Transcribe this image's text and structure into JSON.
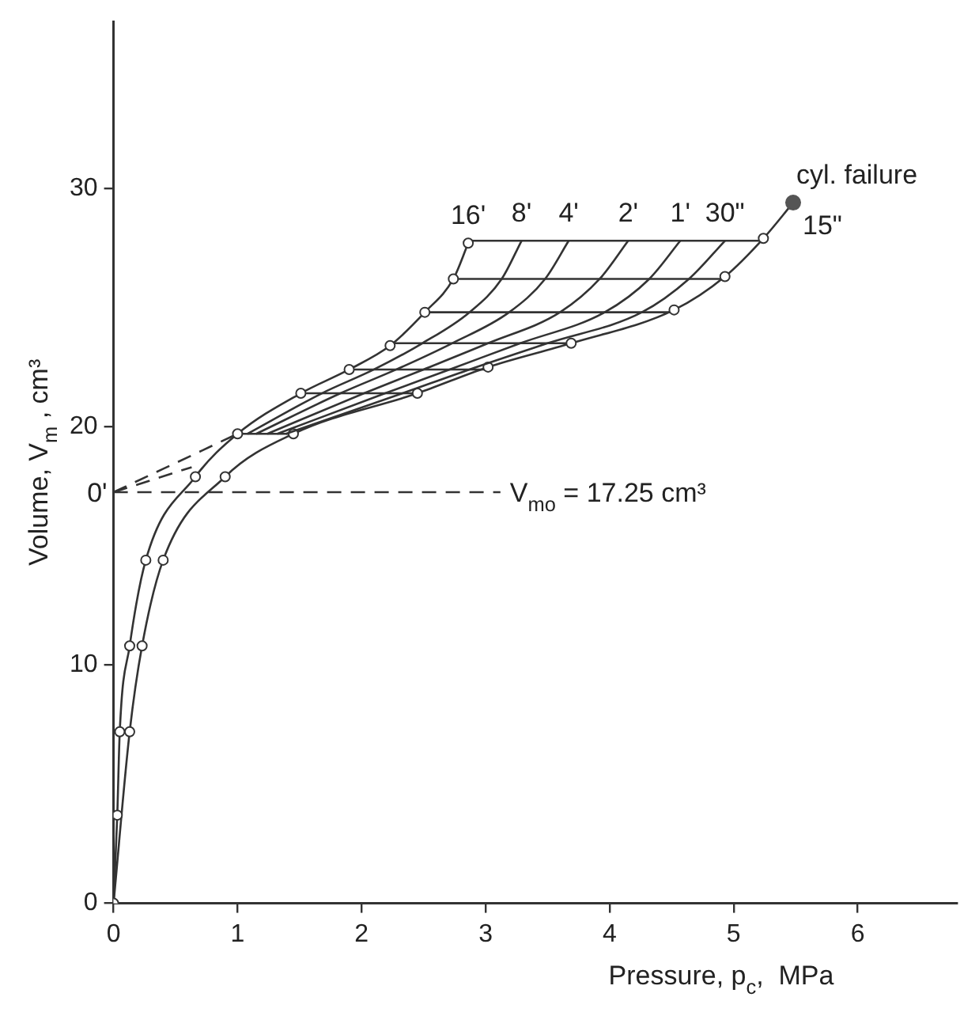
{
  "chart_data": {
    "type": "line",
    "xlabel": "Pressure, p$_{c}$,  MPa",
    "ylabel": "Volume, V$_{m}$ , cm³",
    "xlim": [
      0,
      6.8
    ],
    "ylim": [
      0,
      37
    ],
    "xticks": [
      0,
      1,
      2,
      3,
      4,
      5,
      6
    ],
    "yticks": [
      0,
      10,
      20,
      30
    ],
    "grid": false,
    "legend": false,
    "marker": "circle",
    "series": [
      {
        "name": "16'",
        "color": "#333333",
        "x": [
          0,
          0.03,
          0.05,
          0.13,
          0.26,
          0.66,
          1.0,
          1.51,
          1.9,
          2.23,
          2.51,
          2.74,
          2.86
        ],
        "values": [
          0,
          3.7,
          7.2,
          10.8,
          14.4,
          17.9,
          19.7,
          21.4,
          22.4,
          23.4,
          24.8,
          26.2,
          27.7
        ]
      },
      {
        "name": "8'",
        "color": "#333333",
        "marker": "none",
        "x": [
          1.08,
          1.68,
          2.1,
          2.49,
          2.87,
          3.13,
          3.29
        ],
        "values": [
          19.7,
          21.4,
          22.4,
          23.5,
          24.8,
          26.2,
          27.8
        ]
      },
      {
        "name": "4'",
        "color": "#333333",
        "marker": "none",
        "x": [
          1.15,
          1.83,
          2.28,
          2.73,
          3.19,
          3.48,
          3.67
        ],
        "values": [
          19.7,
          21.4,
          22.4,
          23.5,
          24.8,
          26.2,
          27.8
        ]
      },
      {
        "name": "2'",
        "color": "#333333",
        "marker": "none",
        "x": [
          1.24,
          2.02,
          2.5,
          3.02,
          3.6,
          3.92,
          4.15
        ],
        "values": [
          19.7,
          21.4,
          22.4,
          23.5,
          24.8,
          26.2,
          27.8
        ]
      },
      {
        "name": "1'",
        "color": "#333333",
        "marker": "none",
        "x": [
          1.32,
          2.19,
          2.71,
          3.28,
          3.96,
          4.32,
          4.57
        ],
        "values": [
          19.7,
          21.4,
          22.4,
          23.5,
          24.8,
          26.2,
          27.8
        ]
      },
      {
        "name": "30\"",
        "color": "#333333",
        "marker": "none",
        "x": [
          1.39,
          2.33,
          2.87,
          3.5,
          4.26,
          4.64,
          4.93
        ],
        "values": [
          19.7,
          21.4,
          22.4,
          23.5,
          24.8,
          26.2,
          27.8
        ]
      },
      {
        "name": "15\"",
        "color": "#333333",
        "x": [
          0,
          0.13,
          0.23,
          0.4,
          0.9,
          1.45,
          2.45,
          3.02,
          3.69,
          4.52,
          4.93,
          5.24,
          5.48
        ],
        "values": [
          0,
          7.2,
          10.8,
          14.4,
          17.9,
          19.7,
          21.4,
          22.5,
          23.5,
          24.9,
          26.3,
          27.9,
          29.4
        ]
      },
      {
        "color": "#333333",
        "marker": "none",
        "x": [
          2.86,
          5.24
        ],
        "values": [
          27.8,
          27.8
        ]
      },
      {
        "color": "#333333",
        "marker": "none",
        "x": [
          2.74,
          4.93
        ],
        "values": [
          26.2,
          26.2
        ]
      },
      {
        "color": "#333333",
        "marker": "none",
        "x": [
          2.51,
          4.52
        ],
        "values": [
          24.8,
          24.8
        ]
      },
      {
        "color": "#333333",
        "marker": "none",
        "x": [
          2.23,
          3.69
        ],
        "values": [
          23.5,
          23.5
        ]
      },
      {
        "color": "#333333",
        "marker": "none",
        "x": [
          1.9,
          3.02
        ],
        "values": [
          22.4,
          22.4
        ]
      },
      {
        "color": "#333333",
        "marker": "none",
        "x": [
          1.51,
          2.45
        ],
        "values": [
          21.4,
          21.4
        ]
      },
      {
        "color": "#333333",
        "marker": "none",
        "x": [
          1.0,
          1.45
        ],
        "values": [
          19.7,
          19.7
        ]
      },
      {
        "name": "0'",
        "color": "#333333",
        "marker": "none",
        "line_style": "dashed",
        "x": [
          0,
          1.0
        ],
        "values": [
          17.25,
          19.7
        ]
      },
      {
        "color": "#333333",
        "marker": "none",
        "line_style": "dashed",
        "x": [
          0,
          0.63
        ],
        "values": [
          17.25,
          18.3
        ]
      },
      {
        "type": "scatter",
        "color": "#555555",
        "x": [
          5.48
        ],
        "values": [
          29.4
        ]
      }
    ],
    "ref_lines": [
      {
        "axis": "y",
        "value": 17.25,
        "label": "V$_{mo}$ = 17.25 cm³",
        "line_style": "dashed"
      }
    ],
    "annotations": [
      {
        "text": "cyl. failure",
        "x": 5.48,
        "y": 29.4
      }
    ]
  }
}
